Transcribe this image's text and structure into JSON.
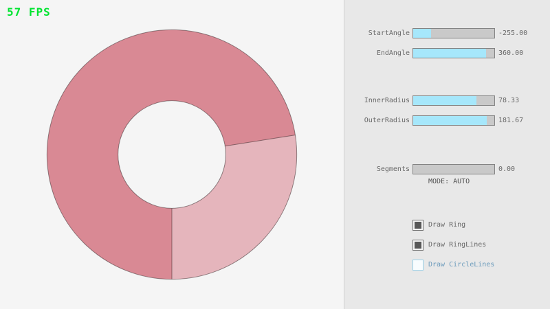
{
  "fps_label": "57 FPS",
  "colors": {
    "fps_green": "#00e430",
    "canvas_bg": "#f5f5f5",
    "panel_bg": "#e8e8e8",
    "slider_fill": "#a6e7fb",
    "slider_track": "#c9c9c9",
    "control_border": "#838383",
    "label_text": "#686868",
    "focus_blue_border": "#97cfe8",
    "focus_blue_text": "#6c9bbc",
    "ring_dark": "#d98994",
    "ring_light": "#e5b5bc",
    "ring_outline": "rgba(0,0,0,0.4)"
  },
  "panel": {
    "sliders": [
      {
        "label": "StartAngle",
        "value": "-255.00",
        "fill_pct": 22
      },
      {
        "label": "EndAngle",
        "value": "360.00",
        "fill_pct": 90
      },
      {
        "label": "InnerRadius",
        "value": "78.33",
        "fill_pct": 78
      },
      {
        "label": "OuterRadius",
        "value": "181.67",
        "fill_pct": 91
      },
      {
        "label": "Segments",
        "value": "0.00",
        "fill_pct": 0
      }
    ],
    "mode_text": "MODE: AUTO",
    "checkboxes": [
      {
        "label": "Draw Ring",
        "checked": true,
        "focused": false
      },
      {
        "label": "Draw RingLines",
        "checked": true,
        "focused": false
      },
      {
        "label": "Draw CircleLines",
        "checked": false,
        "focused": true
      }
    ]
  },
  "ring": {
    "start_angle": -255.0,
    "end_angle": 360.0,
    "inner_radius": 78.33,
    "outer_radius": 181.67,
    "segments": 0
  }
}
